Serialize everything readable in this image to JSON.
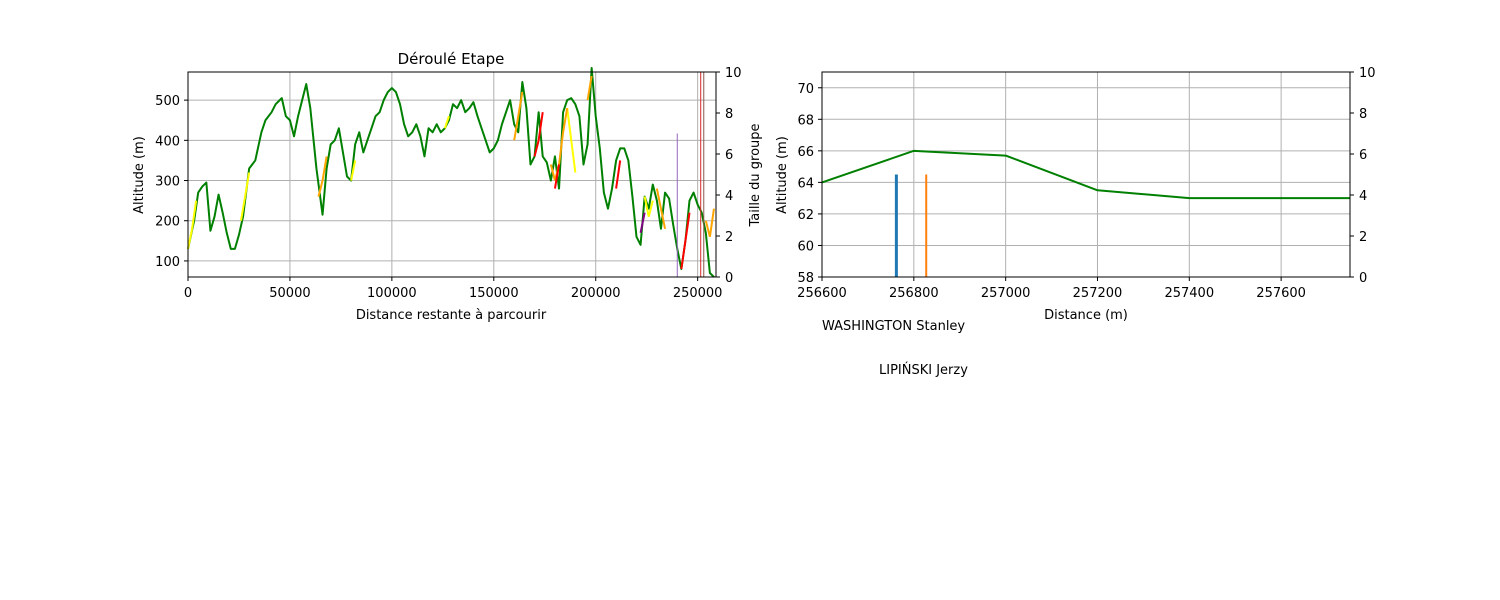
{
  "chart_data": [
    {
      "type": "line",
      "title": "Déroulé Etape",
      "xlabel": "Distance restante à parcourir",
      "ylabel": "Altitude (m)",
      "y2label": "Taille du groupe",
      "xlim": [
        0,
        259000
      ],
      "ylim": [
        60,
        570
      ],
      "y2lim": [
        0,
        10
      ],
      "xticks": [
        0,
        50000,
        100000,
        150000,
        200000,
        250000
      ],
      "yticks": [
        100,
        200,
        300,
        400,
        500
      ],
      "y2ticks": [
        0,
        2,
        4,
        6,
        8,
        10
      ],
      "grid": true,
      "series": [
        {
          "color": "#008000",
          "x": [
            0,
            3000,
            5000,
            7000,
            9000,
            11000,
            13000,
            15000,
            17000,
            19000,
            21000,
            23000,
            25000,
            27000,
            30000,
            33000,
            36000,
            38000,
            41000,
            43000,
            46000,
            48000,
            50000,
            52000,
            54000,
            56000,
            58000,
            60000,
            63000,
            66000,
            68000,
            70000,
            72000,
            74000,
            76000,
            78000,
            80000,
            82000,
            84000,
            86000,
            88000,
            90000,
            92000,
            94000,
            96000,
            98000,
            100000,
            102000,
            104000,
            106000,
            108000,
            110000,
            112000,
            114000,
            116000,
            118000,
            120000,
            122000,
            124000,
            126000,
            128000,
            130000,
            132000,
            134000,
            136000,
            138000,
            140000,
            142000,
            144000,
            146000,
            148000,
            150000,
            152000,
            154000,
            156000,
            158000,
            160000,
            162000,
            164000,
            166000,
            168000,
            170000,
            172000,
            174000,
            176000,
            178000,
            180000,
            182000,
            184000,
            186000,
            188000,
            190000,
            192000,
            194000,
            196000,
            198000,
            200000,
            202000,
            204000,
            206000,
            208000,
            210000,
            212000,
            214000,
            216000,
            218000,
            220000,
            222000,
            224000,
            226000,
            228000,
            230000,
            232000,
            234000,
            236000,
            238000,
            240000,
            242000,
            244000,
            246000,
            248000,
            250000,
            252000,
            254000,
            256000,
            258000
          ],
          "y": [
            130,
            200,
            270,
            285,
            295,
            175,
            210,
            265,
            220,
            170,
            130,
            130,
            165,
            210,
            330,
            350,
            420,
            450,
            470,
            490,
            505,
            460,
            450,
            410,
            460,
            500,
            540,
            480,
            330,
            215,
            330,
            390,
            400,
            430,
            370,
            310,
            300,
            390,
            420,
            370,
            400,
            430,
            460,
            470,
            500,
            520,
            530,
            520,
            490,
            440,
            410,
            420,
            440,
            410,
            360,
            430,
            420,
            440,
            420,
            430,
            450,
            490,
            480,
            500,
            470,
            480,
            495,
            460,
            430,
            400,
            370,
            380,
            400,
            440,
            470,
            500,
            440,
            420,
            545,
            480,
            340,
            360,
            470,
            360,
            345,
            300,
            360,
            280,
            470,
            500,
            505,
            490,
            460,
            340,
            390,
            580,
            460,
            380,
            270,
            230,
            280,
            350,
            380,
            380,
            350,
            260,
            160,
            140,
            260,
            230,
            290,
            250,
            180,
            270,
            255,
            190,
            130,
            80,
            150,
            250,
            270,
            240,
            220,
            170,
            70,
            60
          ]
        },
        {
          "color": "#ffff00",
          "x": [
            0,
            2000,
            4000,
            26000,
            28000,
            30000,
            80000,
            82000,
            126000,
            128000,
            186000,
            188000,
            190000,
            224000,
            226000,
            228000
          ],
          "y": [
            130,
            180,
            250,
            200,
            260,
            320,
            300,
            350,
            430,
            460,
            480,
            400,
            320,
            260,
            210,
            250
          ]
        },
        {
          "color": "#ffa500",
          "x": [
            64000,
            66000,
            68000,
            160000,
            162000,
            164000,
            178000,
            180000,
            182000,
            184000,
            186000,
            196000,
            198000,
            230000,
            232000,
            234000,
            254000,
            256000,
            258000
          ],
          "y": [
            260,
            300,
            360,
            400,
            460,
            520,
            340,
            300,
            340,
            420,
            480,
            500,
            560,
            280,
            230,
            180,
            200,
            160,
            230
          ]
        },
        {
          "color": "#ff0000",
          "x": [
            170000,
            172000,
            174000,
            180000,
            182000,
            210000,
            212000,
            242000,
            244000,
            246000
          ],
          "y": [
            360,
            400,
            470,
            280,
            340,
            280,
            350,
            80,
            150,
            220
          ]
        },
        {
          "color": "#800080",
          "x": [
            222000,
            224000
          ],
          "y": [
            170,
            220
          ]
        }
      ],
      "group_markers": [
        {
          "x": 240000,
          "size": 7,
          "color": "#9467bd"
        },
        {
          "x": 251500,
          "size": 10,
          "color": "#d62728"
        },
        {
          "x": 253000,
          "size": 10,
          "color": "#8c564b"
        }
      ]
    },
    {
      "type": "line",
      "title": "",
      "xlabel": "Distance (m)",
      "ylabel": "Altitude (m)",
      "y2label": "",
      "xlim": [
        256600,
        257750
      ],
      "ylim": [
        58,
        71
      ],
      "y2lim": [
        0,
        10
      ],
      "xticks": [
        256600,
        256800,
        257000,
        257200,
        257400,
        257600
      ],
      "yticks": [
        58,
        60,
        62,
        64,
        66,
        68,
        70
      ],
      "y2ticks": [
        0,
        2,
        4,
        6,
        8,
        10
      ],
      "grid": true,
      "series": [
        {
          "color": "#008000",
          "x": [
            256600,
            256800,
            257000,
            257200,
            257400,
            257600,
            257750
          ],
          "y": [
            64,
            66,
            65.7,
            63.5,
            63,
            63,
            63
          ]
        }
      ],
      "riders": [
        {
          "name": "WASHINGTON Stanley",
          "x": 256762,
          "group_size": 5,
          "color": "#1f77b4"
        },
        {
          "name": "LIPIŃSKI Jerzy",
          "x": 256827,
          "group_size": 5,
          "color": "#ff7f0e"
        }
      ]
    }
  ]
}
